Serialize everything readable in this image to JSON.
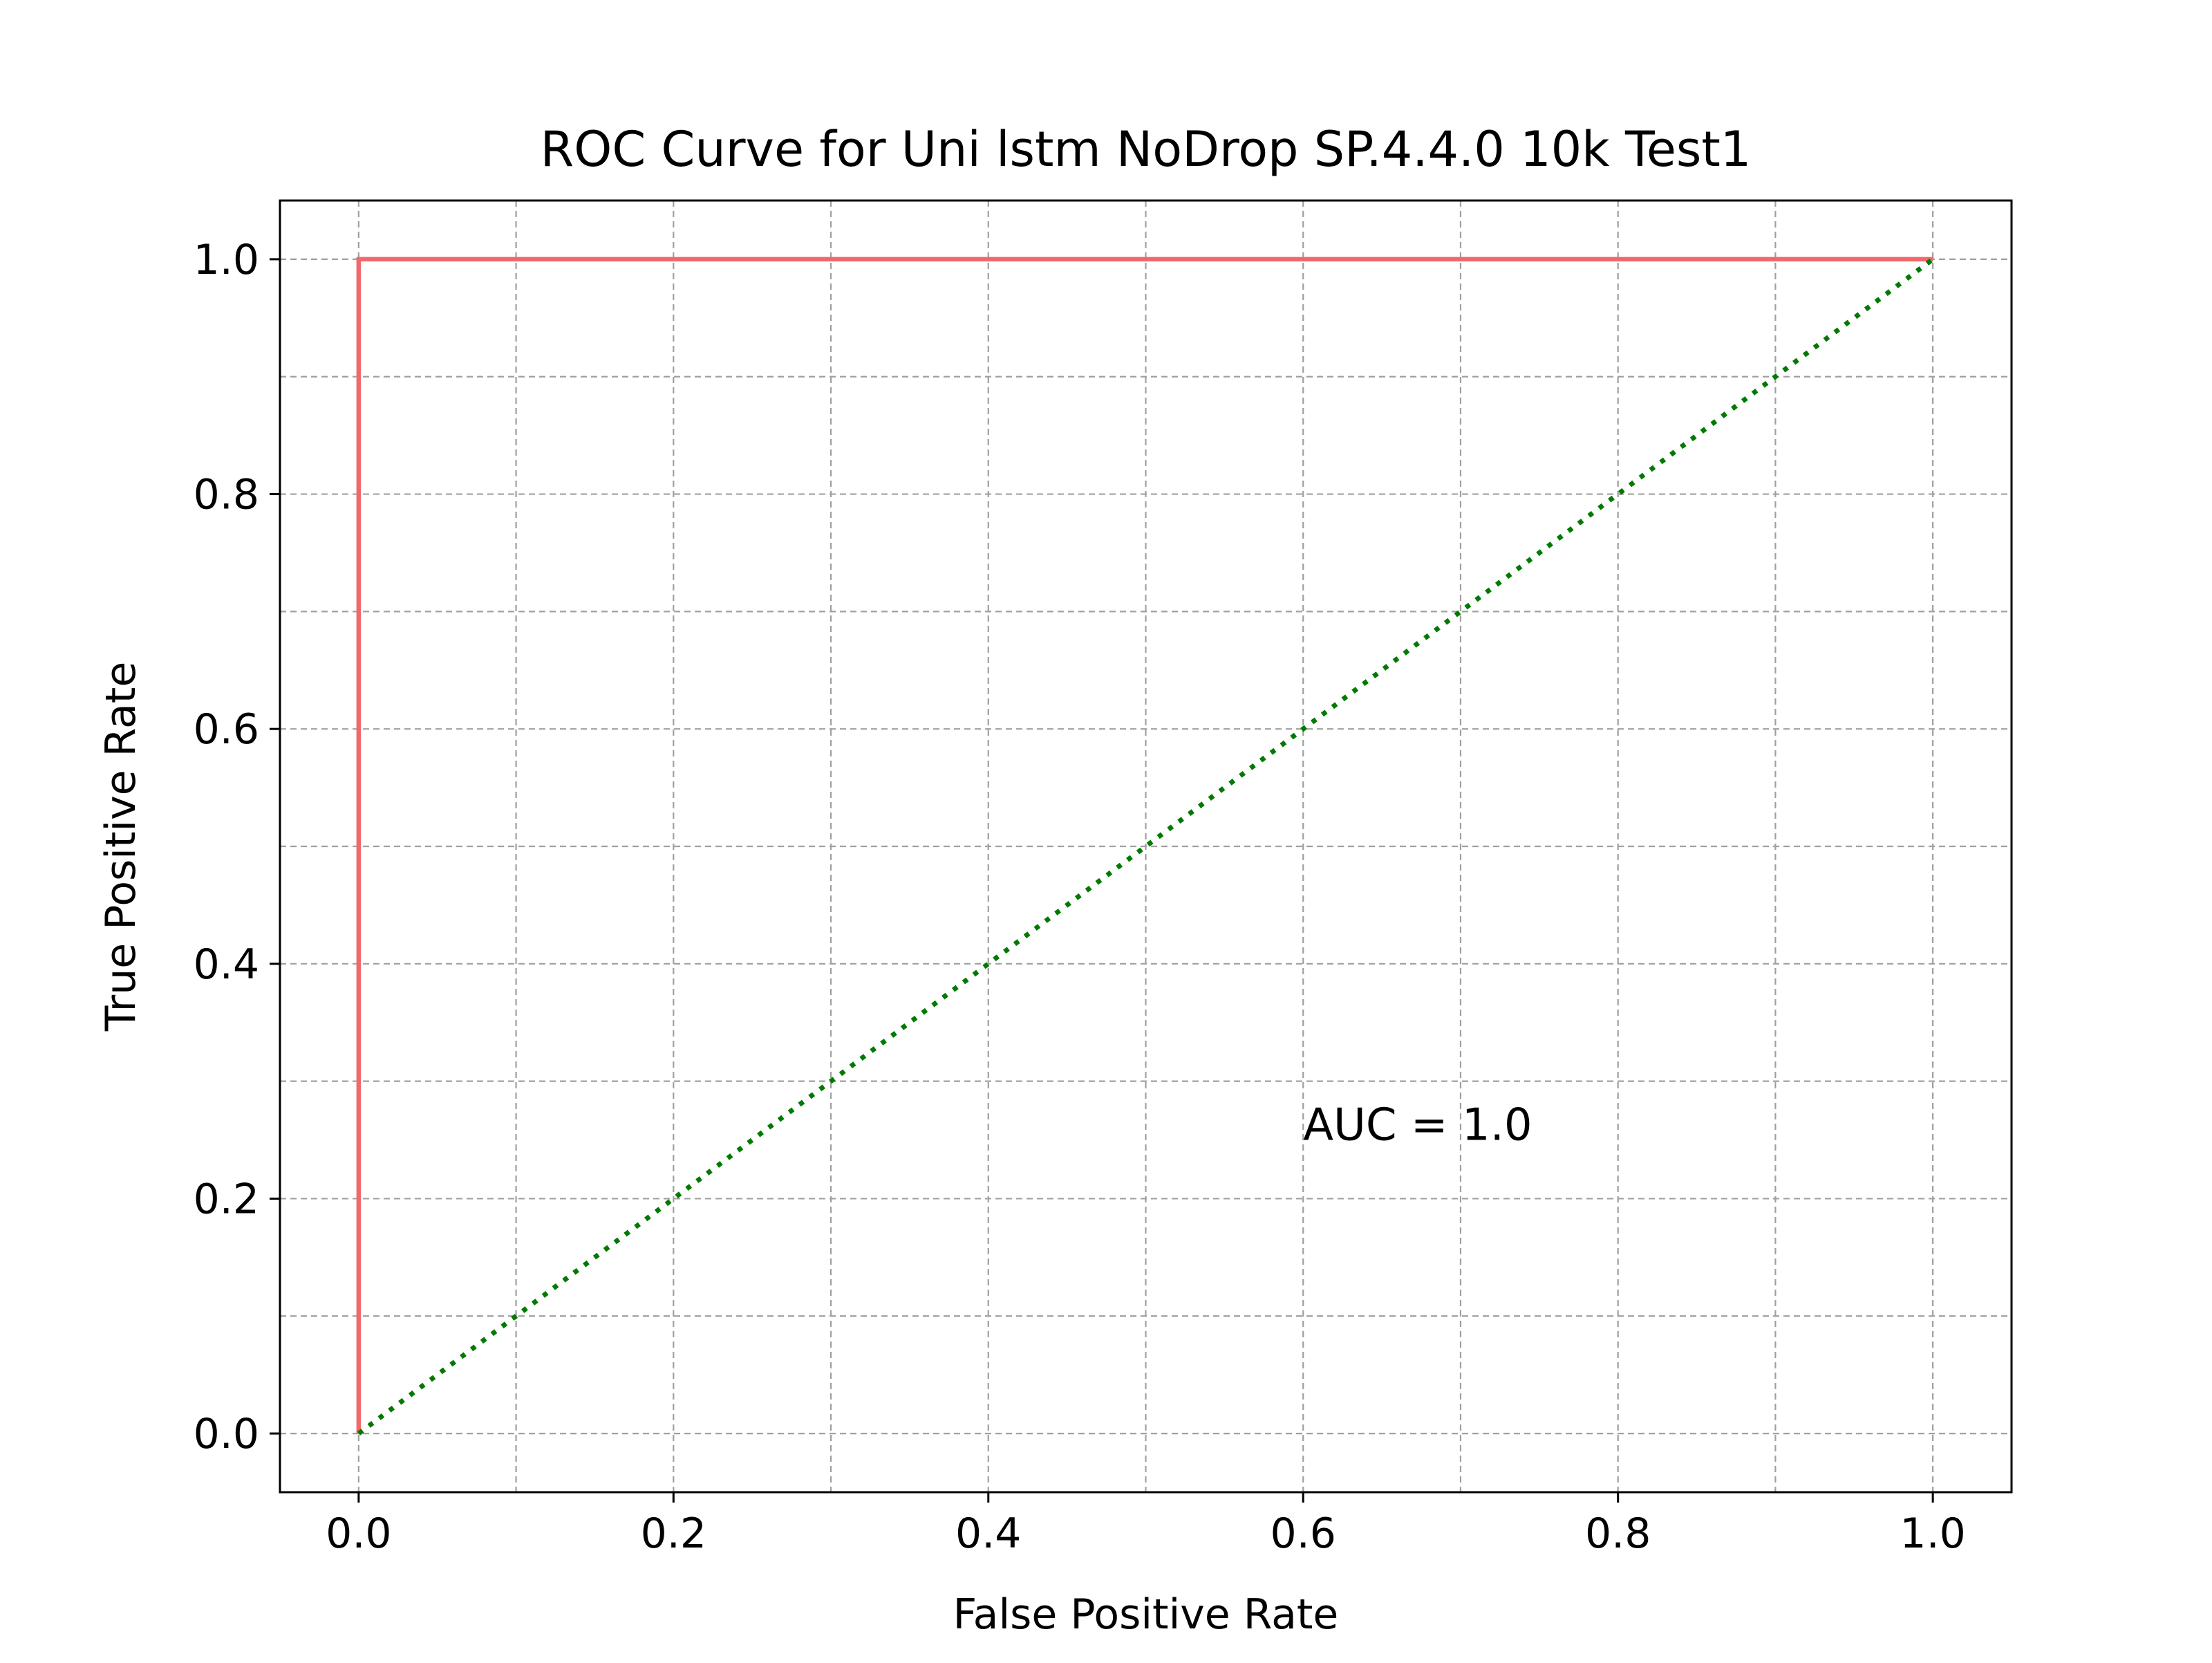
{
  "chart_data": {
    "type": "line",
    "title": "ROC Curve for Uni lstm NoDrop SP.4.4.0 10k Test1",
    "xlabel": "False Positive Rate",
    "ylabel": "True Positive Rate",
    "xlim": [
      -0.05,
      1.05
    ],
    "ylim": [
      -0.05,
      1.05
    ],
    "xticks": [
      0.0,
      0.2,
      0.4,
      0.6,
      0.8,
      1.0
    ],
    "yticks": [
      0.0,
      0.2,
      0.4,
      0.6,
      0.8,
      1.0
    ],
    "xtick_labels": [
      "0.0",
      "0.2",
      "0.4",
      "0.6",
      "0.8",
      "1.0"
    ],
    "ytick_labels": [
      "0.0",
      "0.2",
      "0.4",
      "0.6",
      "0.8",
      "1.0"
    ],
    "grid": true,
    "grid_minor_step": 0.1,
    "series": [
      {
        "x": [
          0.0,
          0.0,
          1.0
        ],
        "y": [
          0.0,
          1.0,
          1.0
        ],
        "color": "#f0686b",
        "style": "solid"
      },
      {
        "x": [
          0.0,
          1.0
        ],
        "y": [
          0.0,
          1.0
        ],
        "color": "#007a00",
        "style": "dotted"
      }
    ],
    "annotations": [
      {
        "text": "AUC = 1.0",
        "x": 0.6,
        "y": 0.25
      }
    ]
  }
}
